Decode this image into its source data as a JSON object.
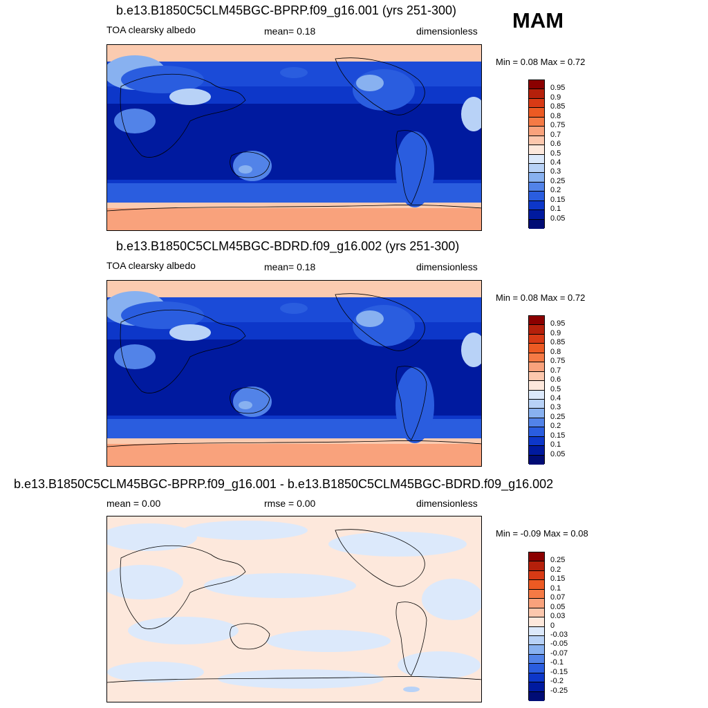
{
  "season": "MAM",
  "panels": [
    {
      "title": "b.e13.B1850C5CLM45BGC-BPRP.f09_g16.001 (yrs 251-300)",
      "left_label": "TOA clearsky albedo",
      "center_label": "mean=   0.18",
      "right_label": "dimensionless",
      "minmax": "Min =   0.08 Max =   0.72",
      "colorbar": {
        "labels": [
          "0.95",
          "0.9",
          "0.85",
          "0.8",
          "0.75",
          "0.7",
          "0.6",
          "0.5",
          "0.4",
          "0.3",
          "0.25",
          "0.2",
          "0.15",
          "0.1",
          "0.05"
        ],
        "colors": [
          "#8b0000",
          "#b5200b",
          "#d83a15",
          "#ec5a23",
          "#f57a45",
          "#f9a27c",
          "#fcc7ad",
          "#fde8dc",
          "#dce9fb",
          "#b8d2f7",
          "#88b1f0",
          "#5283e8",
          "#2a5ddf",
          "#0d37c9",
          "#001a9f",
          "#000c75"
        ]
      },
      "map_data": {
        "variable": "TOA clearsky albedo",
        "units": "dimensionless",
        "mean": 0.18,
        "min": 0.08,
        "max": 0.72
      }
    },
    {
      "title": "b.e13.B1850C5CLM45BGC-BDRD.f09_g16.002 (yrs 251-300)",
      "left_label": "TOA clearsky albedo",
      "center_label": "mean=   0.18",
      "right_label": "dimensionless",
      "minmax": "Min =   0.08 Max =   0.72",
      "colorbar": {
        "labels": [
          "0.95",
          "0.9",
          "0.85",
          "0.8",
          "0.75",
          "0.7",
          "0.6",
          "0.5",
          "0.4",
          "0.3",
          "0.25",
          "0.2",
          "0.15",
          "0.1",
          "0.05"
        ],
        "colors": [
          "#8b0000",
          "#b5200b",
          "#d83a15",
          "#ec5a23",
          "#f57a45",
          "#f9a27c",
          "#fcc7ad",
          "#fde8dc",
          "#dce9fb",
          "#b8d2f7",
          "#88b1f0",
          "#5283e8",
          "#2a5ddf",
          "#0d37c9",
          "#001a9f",
          "#000c75"
        ]
      },
      "map_data": {
        "variable": "TOA clearsky albedo",
        "units": "dimensionless",
        "mean": 0.18,
        "min": 0.08,
        "max": 0.72
      }
    },
    {
      "title": "b.e13.B1850C5CLM45BGC-BPRP.f09_g16.001 - b.e13.B1850C5CLM45BGC-BDRD.f09_g16.002",
      "left_label": "mean =   0.00",
      "center_label": "rmse =   0.00",
      "right_label": "dimensionless",
      "minmax": "Min =  -0.09 Max =   0.08",
      "colorbar": {
        "labels": [
          "0.25",
          "0.2",
          "0.15",
          "0.1",
          "0.07",
          "0.05",
          "0.03",
          "0",
          "-0.03",
          "-0.05",
          "-0.07",
          "-0.1",
          "-0.15",
          "-0.2",
          "-0.25"
        ],
        "colors": [
          "#8b0000",
          "#b5200b",
          "#d83a15",
          "#ec5a23",
          "#f57a45",
          "#f9a27c",
          "#fcc7ad",
          "#fde8dc",
          "#dce9fb",
          "#b8d2f7",
          "#88b1f0",
          "#5283e8",
          "#2a5ddf",
          "#0d37c9",
          "#001a9f",
          "#000c75"
        ]
      },
      "map_data": {
        "mean": 0.0,
        "rmse": 0.0,
        "units": "dimensionless",
        "min": -0.09,
        "max": 0.08
      }
    }
  ]
}
